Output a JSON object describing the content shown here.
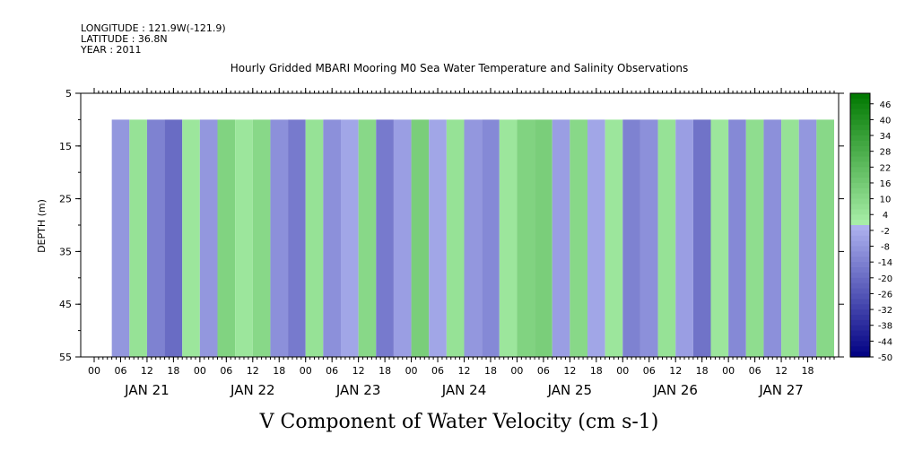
{
  "header": {
    "longitude": "LONGITUDE : 121.9W(-121.9)",
    "latitude": "LATITUDE : 36.8N",
    "year": "YEAR : 2011"
  },
  "chart_data": {
    "type": "heatmap",
    "title": "Hourly Gridded MBARI Mooring M0 Sea Water Temperature and Salinity Observations",
    "bottom_title": "V Component of Water Velocity (cm s-1)",
    "ylabel": "DEPTH (m)",
    "y_ticks": [
      5,
      15,
      25,
      35,
      45,
      55
    ],
    "ylim": [
      55,
      5
    ],
    "x_hour_ticks": [
      "00",
      "06",
      "12",
      "18",
      "00",
      "06",
      "12",
      "18",
      "00",
      "06",
      "12",
      "18",
      "00",
      "06",
      "12",
      "18",
      "00",
      "06",
      "12",
      "18",
      "00",
      "06",
      "12",
      "18",
      "00",
      "06",
      "12",
      "18"
    ],
    "x_day_labels": [
      "JAN 21",
      "JAN 22",
      "JAN 23",
      "JAN 24",
      "JAN 25",
      "JAN 26",
      "JAN 27"
    ],
    "data_depth_range": [
      10,
      55
    ],
    "colorbar": {
      "labels": [
        46,
        40,
        34,
        28,
        22,
        16,
        10,
        4,
        -2,
        -8,
        -14,
        -20,
        -26,
        -32,
        -38,
        -44,
        -50
      ],
      "range": [
        -50,
        50
      ]
    },
    "time_sections": [
      {
        "day": "JAN 21",
        "hour": 4,
        "v": -8
      },
      {
        "day": "JAN 21",
        "hour": 8,
        "v": 6
      },
      {
        "day": "JAN 21",
        "hour": 12,
        "v": -14
      },
      {
        "day": "JAN 21",
        "hour": 16,
        "v": -20
      },
      {
        "day": "JAN 21",
        "hour": 20,
        "v": 4
      },
      {
        "day": "JAN 22",
        "hour": 0,
        "v": -8
      },
      {
        "day": "JAN 22",
        "hour": 4,
        "v": 12
      },
      {
        "day": "JAN 22",
        "hour": 8,
        "v": 4
      },
      {
        "day": "JAN 22",
        "hour": 12,
        "v": 10
      },
      {
        "day": "JAN 22",
        "hour": 16,
        "v": -10
      },
      {
        "day": "JAN 22",
        "hour": 20,
        "v": -16
      },
      {
        "day": "JAN 23",
        "hour": 0,
        "v": 6
      },
      {
        "day": "JAN 23",
        "hour": 4,
        "v": -10
      },
      {
        "day": "JAN 23",
        "hour": 8,
        "v": -4
      },
      {
        "day": "JAN 23",
        "hour": 12,
        "v": 10
      },
      {
        "day": "JAN 23",
        "hour": 16,
        "v": -16
      },
      {
        "day": "JAN 23",
        "hour": 20,
        "v": -6
      },
      {
        "day": "JAN 24",
        "hour": 0,
        "v": 14
      },
      {
        "day": "JAN 24",
        "hour": 4,
        "v": -4
      },
      {
        "day": "JAN 24",
        "hour": 8,
        "v": 6
      },
      {
        "day": "JAN 24",
        "hour": 12,
        "v": -8
      },
      {
        "day": "JAN 24",
        "hour": 16,
        "v": -12
      },
      {
        "day": "JAN 24",
        "hour": 20,
        "v": 4
      },
      {
        "day": "JAN 25",
        "hour": 0,
        "v": 12
      },
      {
        "day": "JAN 25",
        "hour": 4,
        "v": 14
      },
      {
        "day": "JAN 25",
        "hour": 8,
        "v": -6
      },
      {
        "day": "JAN 25",
        "hour": 12,
        "v": 10
      },
      {
        "day": "JAN 25",
        "hour": 16,
        "v": -4
      },
      {
        "day": "JAN 25",
        "hour": 20,
        "v": 4
      },
      {
        "day": "JAN 26",
        "hour": 0,
        "v": -14
      },
      {
        "day": "JAN 26",
        "hour": 4,
        "v": -10
      },
      {
        "day": "JAN 26",
        "hour": 8,
        "v": 6
      },
      {
        "day": "JAN 26",
        "hour": 12,
        "v": -6
      },
      {
        "day": "JAN 26",
        "hour": 16,
        "v": -18
      },
      {
        "day": "JAN 26",
        "hour": 20,
        "v": 4
      },
      {
        "day": "JAN 27",
        "hour": 0,
        "v": -12
      },
      {
        "day": "JAN 27",
        "hour": 4,
        "v": 8
      },
      {
        "day": "JAN 27",
        "hour": 8,
        "v": -10
      },
      {
        "day": "JAN 27",
        "hour": 12,
        "v": 6
      },
      {
        "day": "JAN 27",
        "hour": 16,
        "v": -8
      },
      {
        "day": "JAN 27",
        "hour": 20,
        "v": 10
      }
    ]
  }
}
